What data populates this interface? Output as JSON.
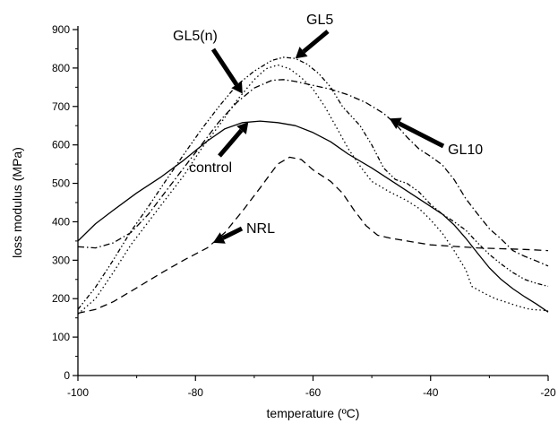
{
  "chart_data": {
    "type": "line",
    "title": "",
    "xlabel": "temperature (ºC)",
    "ylabel": "loss modulus (MPa)",
    "xlim": [
      -100,
      -20
    ],
    "ylim": [
      0,
      900
    ],
    "xticks": [
      -100,
      -80,
      -60,
      -40,
      -20
    ],
    "yticks": [
      0,
      100,
      200,
      300,
      400,
      500,
      600,
      700,
      800,
      900
    ],
    "grid": false,
    "legend": "none",
    "series": [
      {
        "name": "control",
        "style": "solid",
        "points": [
          [
            -100,
            350
          ],
          [
            -97,
            395
          ],
          [
            -94,
            430
          ],
          [
            -90,
            475
          ],
          [
            -86,
            515
          ],
          [
            -82,
            560
          ],
          [
            -78,
            610
          ],
          [
            -75,
            642
          ],
          [
            -72,
            658
          ],
          [
            -69,
            662
          ],
          [
            -66,
            658
          ],
          [
            -63,
            650
          ],
          [
            -60,
            632
          ],
          [
            -57,
            608
          ],
          [
            -54,
            576
          ],
          [
            -50,
            540
          ],
          [
            -46,
            500
          ],
          [
            -42,
            460
          ],
          [
            -38,
            420
          ],
          [
            -36,
            392
          ],
          [
            -34,
            357
          ],
          [
            -32,
            318
          ],
          [
            -30,
            280
          ],
          [
            -28,
            250
          ],
          [
            -26,
            226
          ],
          [
            -24,
            205
          ],
          [
            -22,
            186
          ],
          [
            -20,
            165
          ]
        ]
      },
      {
        "name": "NRL",
        "style": "dashed",
        "points": [
          [
            -100,
            162
          ],
          [
            -97,
            172
          ],
          [
            -94,
            192
          ],
          [
            -90,
            228
          ],
          [
            -86,
            265
          ],
          [
            -82,
            300
          ],
          [
            -78,
            332
          ],
          [
            -75,
            372
          ],
          [
            -72,
            428
          ],
          [
            -69,
            488
          ],
          [
            -67,
            530
          ],
          [
            -66,
            550
          ],
          [
            -64,
            568
          ],
          [
            -62,
            562
          ],
          [
            -60,
            535
          ],
          [
            -57,
            505
          ],
          [
            -55,
            475
          ],
          [
            -53,
            430
          ],
          [
            -51,
            390
          ],
          [
            -49,
            365
          ],
          [
            -47,
            358
          ],
          [
            -44,
            350
          ],
          [
            -40,
            340
          ],
          [
            -36,
            336
          ],
          [
            -32,
            332
          ],
          [
            -28,
            330
          ],
          [
            -24,
            328
          ],
          [
            -20,
            325
          ]
        ]
      },
      {
        "name": "GL5",
        "style": "dash-dot-dot",
        "points": [
          [
            -100,
            172
          ],
          [
            -97,
            230
          ],
          [
            -94,
            300
          ],
          [
            -91,
            375
          ],
          [
            -88,
            440
          ],
          [
            -85,
            508
          ],
          [
            -82,
            575
          ],
          [
            -79,
            640
          ],
          [
            -76,
            700
          ],
          [
            -73,
            755
          ],
          [
            -70,
            792
          ],
          [
            -67,
            820
          ],
          [
            -65,
            828
          ],
          [
            -63,
            825
          ],
          [
            -61,
            810
          ],
          [
            -59,
            785
          ],
          [
            -57,
            750
          ],
          [
            -55,
            700
          ],
          [
            -52,
            650
          ],
          [
            -50,
            600
          ],
          [
            -48,
            540
          ],
          [
            -46,
            510
          ],
          [
            -44,
            500
          ],
          [
            -42,
            478
          ],
          [
            -40,
            445
          ],
          [
            -38,
            420
          ],
          [
            -36,
            400
          ],
          [
            -34,
            378
          ],
          [
            -32,
            345
          ],
          [
            -30,
            315
          ],
          [
            -28,
            290
          ],
          [
            -26,
            268
          ],
          [
            -24,
            250
          ],
          [
            -22,
            240
          ],
          [
            -20,
            232
          ]
        ]
      },
      {
        "name": "GL5(n)",
        "style": "dotted",
        "points": [
          [
            -100,
            160
          ],
          [
            -97,
            200
          ],
          [
            -94,
            268
          ],
          [
            -91,
            340
          ],
          [
            -88,
            400
          ],
          [
            -85,
            460
          ],
          [
            -82,
            520
          ],
          [
            -79,
            590
          ],
          [
            -76,
            650
          ],
          [
            -73,
            715
          ],
          [
            -70,
            770
          ],
          [
            -68,
            798
          ],
          [
            -66,
            808
          ],
          [
            -64,
            798
          ],
          [
            -62,
            775
          ],
          [
            -60,
            745
          ],
          [
            -58,
            700
          ],
          [
            -56,
            645
          ],
          [
            -54,
            590
          ],
          [
            -52,
            545
          ],
          [
            -50,
            505
          ],
          [
            -47,
            478
          ],
          [
            -44,
            455
          ],
          [
            -42,
            435
          ],
          [
            -40,
            405
          ],
          [
            -38,
            370
          ],
          [
            -36,
            325
          ],
          [
            -34,
            275
          ],
          [
            -33,
            232
          ],
          [
            -31,
            215
          ],
          [
            -29,
            200
          ],
          [
            -27,
            190
          ],
          [
            -25,
            180
          ],
          [
            -23,
            172
          ],
          [
            -21,
            170
          ],
          [
            -20,
            168
          ]
        ]
      },
      {
        "name": "GL10",
        "style": "dash-dot",
        "points": [
          [
            -100,
            335
          ],
          [
            -97,
            332
          ],
          [
            -94,
            345
          ],
          [
            -91,
            372
          ],
          [
            -88,
            420
          ],
          [
            -85,
            480
          ],
          [
            -82,
            540
          ],
          [
            -79,
            600
          ],
          [
            -76,
            660
          ],
          [
            -73,
            710
          ],
          [
            -70,
            748
          ],
          [
            -67,
            768
          ],
          [
            -65,
            770
          ],
          [
            -63,
            765
          ],
          [
            -60,
            755
          ],
          [
            -57,
            745
          ],
          [
            -54,
            730
          ],
          [
            -51,
            710
          ],
          [
            -48,
            682
          ],
          [
            -46,
            655
          ],
          [
            -44,
            620
          ],
          [
            -42,
            590
          ],
          [
            -40,
            570
          ],
          [
            -38,
            548
          ],
          [
            -36,
            510
          ],
          [
            -34,
            460
          ],
          [
            -32,
            420
          ],
          [
            -30,
            382
          ],
          [
            -28,
            355
          ],
          [
            -26,
            325
          ],
          [
            -24,
            310
          ],
          [
            -22,
            298
          ],
          [
            -20,
            285
          ]
        ]
      }
    ],
    "annotations": [
      {
        "text": "GL5(n)",
        "series": "GL5(n)"
      },
      {
        "text": "GL5",
        "series": "GL5"
      },
      {
        "text": "GL10",
        "series": "GL10"
      },
      {
        "text": "control",
        "series": "control"
      },
      {
        "text": "NRL",
        "series": "NRL"
      }
    ]
  }
}
